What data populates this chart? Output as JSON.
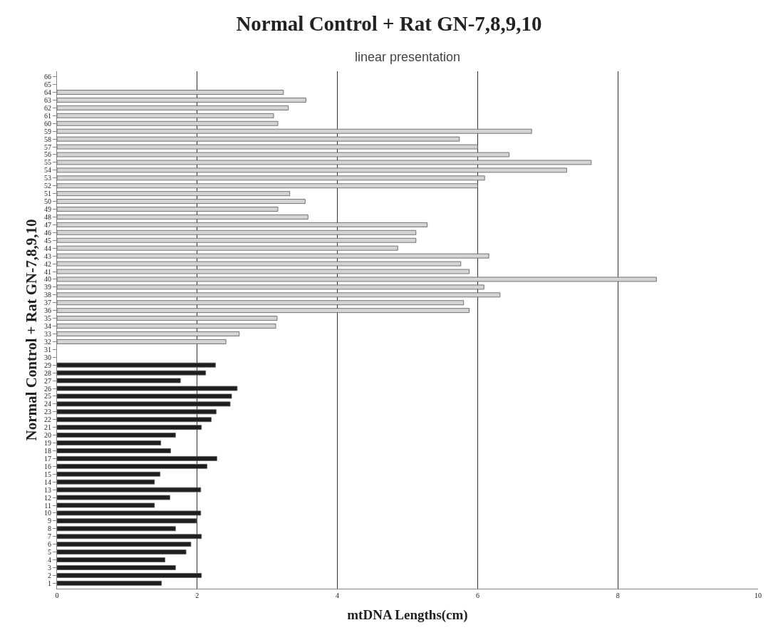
{
  "chart_data": {
    "type": "bar",
    "orientation": "horizontal",
    "title": "Normal Control + Rat GN-7,8,9,10",
    "subtitle": "linear presentation",
    "xlabel": "mtDNA Lengths(cm)",
    "ylabel": "Normal Control + Rat GN-7,8,9,10",
    "categories": [
      "66",
      "65",
      "64",
      "63",
      "62",
      "61",
      "60",
      "59",
      "58",
      "57",
      "56",
      "55",
      "54",
      "53",
      "52",
      "51",
      "50",
      "49",
      "48",
      "47",
      "46",
      "45",
      "44",
      "43",
      "42",
      "41",
      "40",
      "39",
      "38",
      "37",
      "36",
      "35",
      "34",
      "33",
      "32",
      "31",
      "30",
      "29",
      "28",
      "27",
      "26",
      "25",
      "24",
      "23",
      "22",
      "21",
      "20",
      "19",
      "18",
      "17",
      "16",
      "15",
      "14",
      "13",
      "12",
      "11",
      "10",
      "9",
      "8",
      "7",
      "6",
      "5",
      "4",
      "3",
      "2",
      "1"
    ],
    "series": [
      {
        "color": "#d4d4d4",
        "values": [
          null,
          null,
          3.23,
          3.55,
          3.3,
          3.09,
          3.15,
          6.77,
          5.74,
          6.0,
          6.45,
          7.62,
          7.27,
          6.1,
          6.0,
          3.32,
          3.54,
          3.15,
          3.58,
          5.28,
          5.12,
          5.12,
          4.86,
          6.16,
          5.76,
          5.88,
          8.55,
          6.09,
          6.32,
          5.8,
          5.88,
          3.14,
          3.12,
          2.6,
          2.41,
          null,
          null,
          null,
          null,
          null,
          null,
          null,
          null,
          null,
          null,
          null,
          null,
          null,
          null,
          null,
          null,
          null,
          null,
          null,
          null,
          null,
          null,
          null,
          null,
          null,
          null,
          null,
          null,
          null,
          null,
          null
        ]
      },
      {
        "color": "#1e1e1e",
        "values": [
          null,
          null,
          null,
          null,
          null,
          null,
          null,
          null,
          null,
          null,
          null,
          null,
          null,
          null,
          null,
          null,
          null,
          null,
          null,
          null,
          null,
          null,
          null,
          null,
          null,
          null,
          null,
          null,
          null,
          null,
          null,
          null,
          null,
          null,
          null,
          null,
          null,
          2.26,
          2.12,
          1.76,
          2.57,
          2.49,
          2.47,
          2.27,
          2.2,
          2.06,
          1.69,
          1.48,
          1.62,
          2.28,
          2.14,
          1.47,
          1.39,
          2.05,
          1.61,
          1.39,
          2.05,
          1.99,
          1.69,
          2.06,
          1.91,
          1.84,
          1.54,
          1.69,
          2.06,
          1.49
        ]
      }
    ],
    "xlim": [
      0,
      10
    ],
    "xticks": [
      0,
      2,
      4,
      6,
      8,
      10
    ],
    "grid": "x"
  }
}
